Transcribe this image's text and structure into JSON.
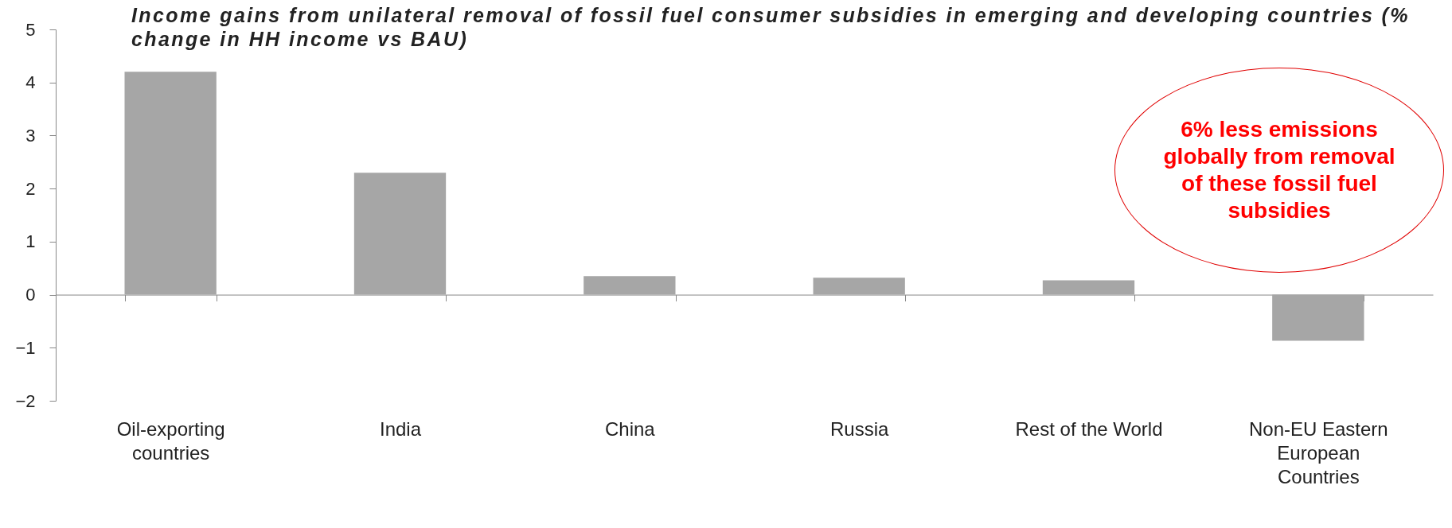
{
  "chart_data": {
    "type": "bar",
    "title": "Income gains from unilateral removal of fossil fuel consumer subsidies in emerging and developing countries (% change in HH income vs BAU)",
    "categories": [
      "Oil-exporting countries",
      "India",
      "China",
      "Russia",
      "Rest of the World",
      "Non-EU Eastern European Countries"
    ],
    "values": [
      4.2,
      2.3,
      0.35,
      0.32,
      0.27,
      -0.87
    ],
    "color": "#a6a6a6",
    "ylim": [
      -2,
      5
    ],
    "yticks": [
      -2,
      -1,
      0,
      1,
      2,
      3,
      4,
      5
    ],
    "annotations": [
      "6% less emissions globally from removal of these fossil fuel subsidies"
    ]
  }
}
